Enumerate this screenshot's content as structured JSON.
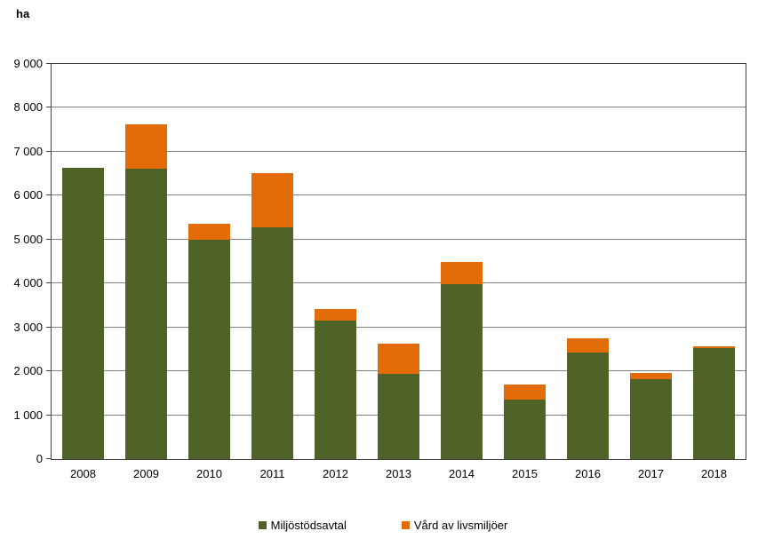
{
  "chart_data": {
    "type": "bar",
    "stacked": true,
    "unit_label": "ha",
    "categories": [
      "2008",
      "2009",
      "2010",
      "2011",
      "2012",
      "2013",
      "2014",
      "2015",
      "2016",
      "2017",
      "2018"
    ],
    "series": [
      {
        "name": "Miljöstödsavtal",
        "color": "#4F6228",
        "values": [
          6640,
          6610,
          5000,
          5280,
          3150,
          1940,
          3980,
          1350,
          2430,
          1820,
          2520
        ]
      },
      {
        "name": "Vård av livsmiljöer",
        "color": "#E36C0A",
        "values": [
          0,
          1020,
          360,
          1230,
          260,
          690,
          500,
          350,
          320,
          140,
          40
        ]
      }
    ],
    "totals": [
      6640,
      7630,
      5360,
      6510,
      3410,
      2630,
      4480,
      1700,
      2750,
      1960,
      2560
    ],
    "ylim": [
      0,
      9000
    ],
    "y_tick_step": 1000,
    "y_tick_labels": [
      "0",
      "1 000",
      "2 000",
      "3 000",
      "4 000",
      "5 000",
      "6 000",
      "7 000",
      "8 000",
      "9 000"
    ],
    "xlabel": "",
    "ylabel": "ha",
    "grid": true,
    "legend_position": "bottom"
  },
  "legend": {
    "items": [
      {
        "label": "Miljöstödsavtal",
        "color": "#4F6228"
      },
      {
        "label": "Vård av livsmiljöer",
        "color": "#E36C0A"
      }
    ]
  },
  "colors": {
    "plot_border": "#3F3F3F",
    "gridline": "#808080",
    "tick": "#3F3F3F",
    "text": "#000000",
    "background": "#FFFFFF"
  }
}
